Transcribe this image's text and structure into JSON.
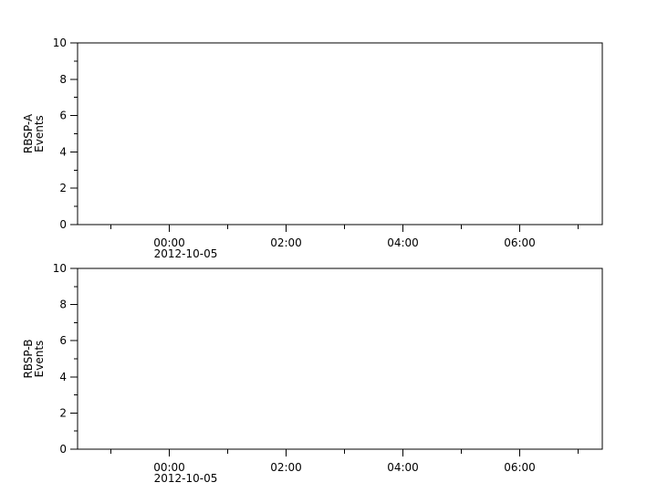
{
  "chart_data": [
    {
      "type": "line",
      "title": "",
      "ylabel": [
        "RBSP-A",
        "Events"
      ],
      "xlabel": "",
      "ylim": [
        0,
        10
      ],
      "yticks": [
        "0",
        "2",
        "4",
        "6",
        "8",
        "10"
      ],
      "yminor_ticks": [
        1,
        3,
        5,
        7,
        9
      ],
      "xlim": [
        "2012-10-04T22:26",
        "2012-10-05T07:25"
      ],
      "xticks": [
        {
          "time": "2012-10-05T00:00",
          "label": "00:00",
          "sublabel": "2012-10-05"
        },
        {
          "time": "2012-10-05T02:00",
          "label": "02:00",
          "sublabel": ""
        },
        {
          "time": "2012-10-05T04:00",
          "label": "04:00",
          "sublabel": ""
        },
        {
          "time": "2012-10-05T06:00",
          "label": "06:00",
          "sublabel": ""
        }
      ],
      "xminor_ticks": [
        "2012-10-04T23:00",
        "2012-10-05T01:00",
        "2012-10-05T03:00",
        "2012-10-05T05:00",
        "2012-10-05T07:00"
      ],
      "series": []
    },
    {
      "type": "line",
      "title": "",
      "ylabel": [
        "RBSP-B",
        "Events"
      ],
      "xlabel": "",
      "ylim": [
        0,
        10
      ],
      "yticks": [
        "0",
        "2",
        "4",
        "6",
        "8",
        "10"
      ],
      "yminor_ticks": [
        1,
        3,
        5,
        7,
        9
      ],
      "xlim": [
        "2012-10-04T22:26",
        "2012-10-05T07:25"
      ],
      "xticks": [
        {
          "time": "2012-10-05T00:00",
          "label": "00:00",
          "sublabel": "2012-10-05"
        },
        {
          "time": "2012-10-05T02:00",
          "label": "02:00",
          "sublabel": ""
        },
        {
          "time": "2012-10-05T04:00",
          "label": "04:00",
          "sublabel": ""
        },
        {
          "time": "2012-10-05T06:00",
          "label": "06:00",
          "sublabel": ""
        }
      ],
      "xminor_ticks": [
        "2012-10-04T23:00",
        "2012-10-05T01:00",
        "2012-10-05T03:00",
        "2012-10-05T05:00",
        "2012-10-05T07:00"
      ],
      "series": []
    }
  ]
}
